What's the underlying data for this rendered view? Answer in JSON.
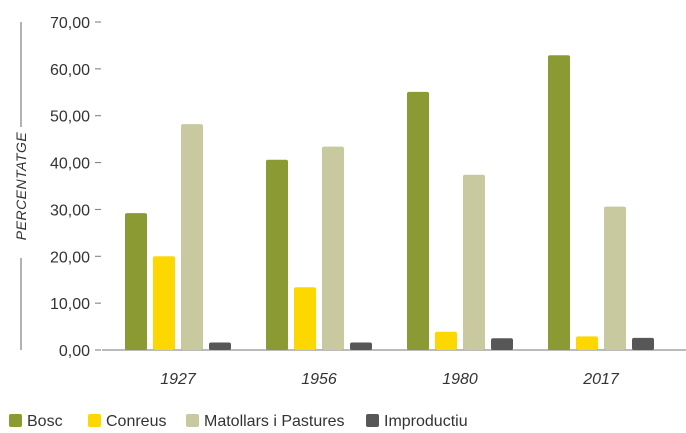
{
  "chart_data": {
    "type": "bar",
    "title": "",
    "xlabel": "",
    "ylabel": "PERCENTATGE",
    "ylim": [
      0,
      70
    ],
    "yticks": [
      "0,00",
      "10,00",
      "20,00",
      "30,00",
      "40,00",
      "50,00",
      "60,00",
      "70,00"
    ],
    "categories": [
      "1927",
      "1956",
      "1980",
      "2017"
    ],
    "grid": false,
    "legend_position": "bottom-left",
    "series": [
      {
        "name": "Bosc",
        "color": "#8c9a33",
        "values": [
          29.2,
          40.6,
          55.1,
          62.9
        ]
      },
      {
        "name": "Conreus",
        "color": "#fcd800",
        "values": [
          20.0,
          13.4,
          3.9,
          2.9
        ]
      },
      {
        "name": "Matollars i Pastures",
        "color": "#c9c9a0",
        "values": [
          48.2,
          43.4,
          37.4,
          30.6
        ]
      },
      {
        "name": "Improductiu",
        "color": "#575757",
        "values": [
          1.6,
          1.6,
          2.5,
          2.6
        ]
      }
    ]
  }
}
